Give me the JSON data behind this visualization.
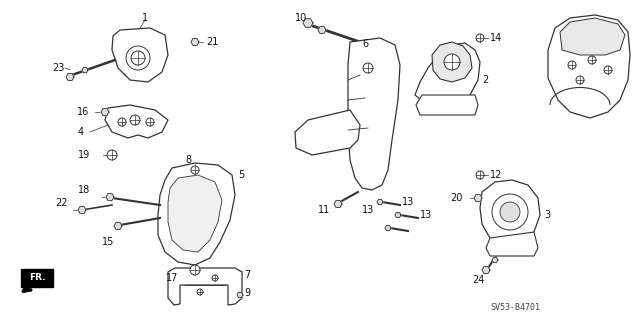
{
  "diagram_code": "SV53-B4701",
  "bg": "#ffffff",
  "lc": "#333333",
  "tc": "#111111",
  "fs_label": 7,
  "lw_part": 0.9,
  "lw_thin": 0.6
}
